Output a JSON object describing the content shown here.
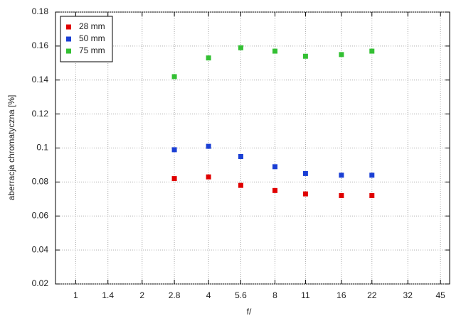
{
  "chart_data": {
    "type": "scatter",
    "x_label": "f/",
    "y_label": "aberracja chromatyczna [%]",
    "x": [
      2.8,
      4,
      5.6,
      8,
      11,
      16,
      22
    ],
    "series": [
      {
        "name": "28 mm",
        "color": "#e00000",
        "values": [
          0.082,
          0.083,
          0.078,
          0.075,
          0.073,
          0.072,
          0.072
        ]
      },
      {
        "name": "50 mm",
        "color": "#1a3fd4",
        "values": [
          0.099,
          0.101,
          0.095,
          0.089,
          0.085,
          0.084,
          0.084
        ]
      },
      {
        "name": "75 mm",
        "color": "#33c033",
        "values": [
          0.142,
          0.153,
          0.159,
          0.157,
          0.154,
          0.155,
          0.157
        ]
      }
    ],
    "xscale": "log",
    "xlim": [
      0.81,
      49.5
    ],
    "xticks": [
      1,
      1.4,
      2,
      2.8,
      4,
      5.6,
      8,
      11,
      16,
      22,
      32,
      45
    ],
    "ylim": [
      0.02,
      0.18
    ],
    "yticks": [
      0.02,
      0.04,
      0.06,
      0.08,
      0.1,
      0.12,
      0.14,
      0.16,
      0.18
    ],
    "grid": true,
    "legend": "upper left"
  }
}
